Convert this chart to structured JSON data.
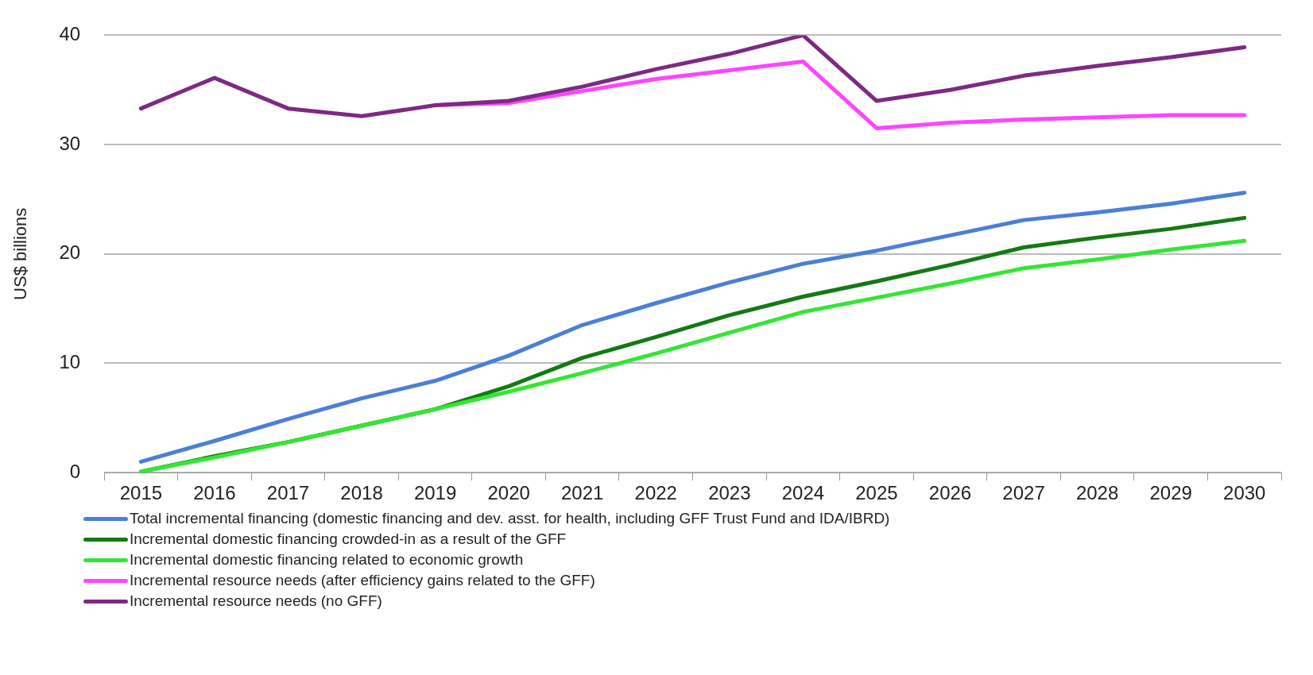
{
  "chart_data": {
    "type": "line",
    "ylabel": "US$ billions",
    "categories": [
      "2015",
      "2016",
      "2017",
      "2018",
      "2019",
      "2020",
      "2021",
      "2022",
      "2023",
      "2024",
      "2025",
      "2026",
      "2027",
      "2028",
      "2029",
      "2030"
    ],
    "ylim": [
      0,
      40
    ],
    "yticks": [
      0,
      10,
      20,
      30,
      40
    ],
    "grid": "y",
    "legend": "bottom",
    "marker": "none",
    "line_style": "solid",
    "series": [
      {
        "name": "Total incremental financing (domestic financing and dev. asst. for health, including GFF Trust Fund and IDA/IBRD)",
        "color": "#4a7fd6",
        "values": [
          1.0,
          2.9,
          4.9,
          6.8,
          8.4,
          10.7,
          13.5,
          15.5,
          17.4,
          19.1,
          20.3,
          21.7,
          23.1,
          23.8,
          24.6,
          25.6
        ]
      },
      {
        "name": "Incremental domestic financing crowded-in as a result of the GFF",
        "color": "#137a13",
        "values": [
          0.1,
          1.5,
          2.8,
          4.3,
          5.8,
          7.9,
          10.5,
          12.4,
          14.4,
          16.1,
          17.5,
          19.0,
          20.6,
          21.5,
          22.3,
          23.3
        ]
      },
      {
        "name": "Incremental domestic financing related to economic growth",
        "color": "#33e633",
        "values": [
          0.1,
          1.4,
          2.8,
          4.3,
          5.8,
          7.4,
          9.1,
          10.9,
          12.8,
          14.7,
          16.0,
          17.3,
          18.7,
          19.5,
          20.4,
          21.2
        ]
      },
      {
        "name": "Incremental resource needs (after efficiency gains related to the GFF)",
        "color": "#ff44ff",
        "values": [
          null,
          null,
          null,
          null,
          33.6,
          33.8,
          34.9,
          36.0,
          36.8,
          37.6,
          31.5,
          32.0,
          32.3,
          32.5,
          32.7,
          32.7
        ]
      },
      {
        "name": "Incremental resource needs (no GFF)",
        "color": "#7d2a82",
        "values": [
          33.3,
          36.1,
          33.3,
          32.6,
          33.6,
          34.0,
          35.3,
          36.9,
          38.3,
          40.0,
          34.0,
          35.0,
          36.3,
          37.2,
          38.0,
          38.9
        ]
      }
    ]
  }
}
